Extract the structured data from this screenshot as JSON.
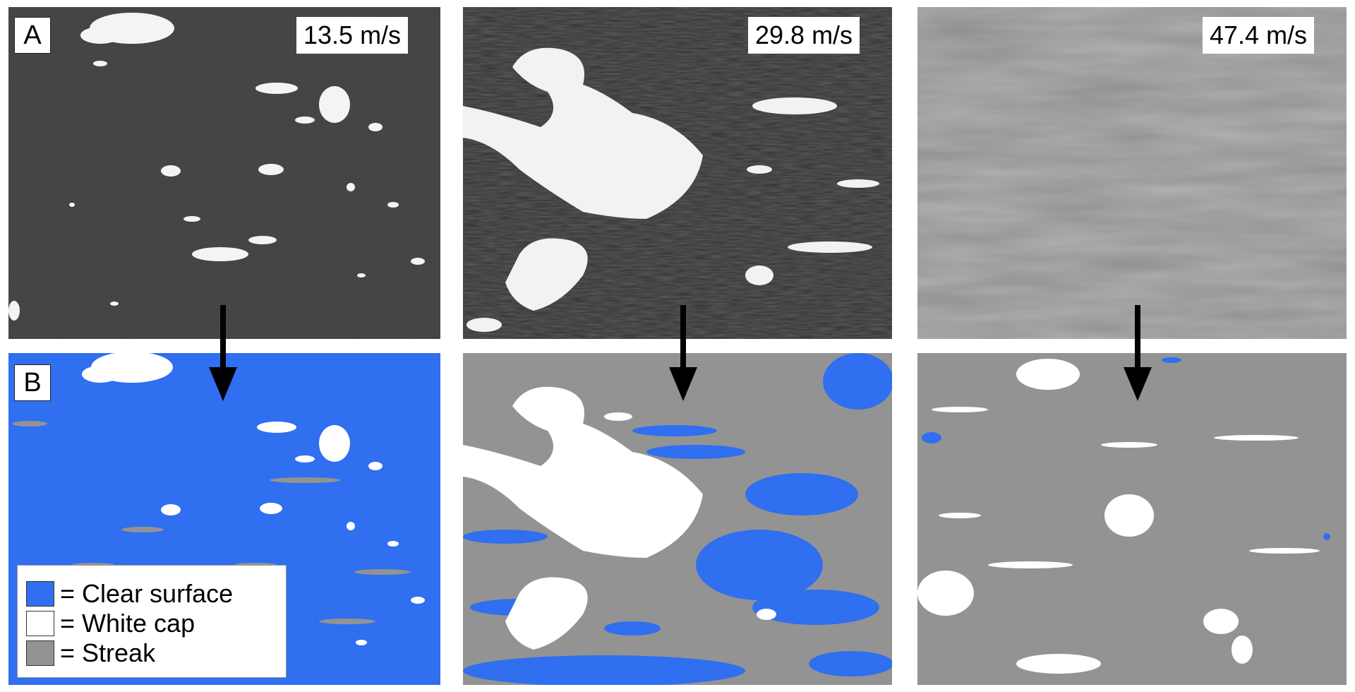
{
  "panel_labels": {
    "top": "A",
    "bottom": "B"
  },
  "wind_speeds": [
    "13.5 m/s",
    "29.8 m/s",
    "47.4 m/s"
  ],
  "legend": [
    {
      "label": "= Clear surface",
      "color": "#2f6ff0"
    },
    {
      "label": "= White cap",
      "color": "#ffffff"
    },
    {
      "label": "= Streak",
      "color": "#939393"
    }
  ],
  "colors": {
    "clear_surface": "#2f6ff0",
    "white_cap": "#ffffff",
    "streak": "#939393",
    "photo_dark": "#3a3a3a",
    "photo_light": "#9a9a9a"
  }
}
